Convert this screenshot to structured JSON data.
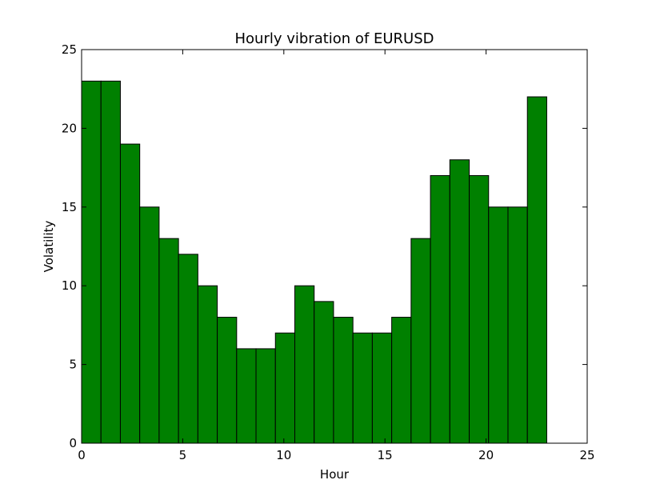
{
  "chart_data": {
    "type": "bar",
    "title": "Hourly vibration of EURUSD",
    "xlabel": "Hour",
    "ylabel": "Volatility",
    "xlim": [
      0,
      25
    ],
    "ylim": [
      0,
      25
    ],
    "x_ticks": [
      0,
      5,
      10,
      15,
      20,
      25
    ],
    "y_ticks": [
      0,
      5,
      10,
      15,
      20,
      25
    ],
    "bin_edges": [
      0,
      0.958,
      1.917,
      2.875,
      3.833,
      4.792,
      5.75,
      6.708,
      7.667,
      8.625,
      9.583,
      10.542,
      11.5,
      12.458,
      13.417,
      14.375,
      15.333,
      16.292,
      17.25,
      18.208,
      19.167,
      20.125,
      21.083,
      22.042,
      23
    ],
    "values": [
      23,
      23,
      19,
      15,
      13,
      12,
      10,
      8,
      6,
      6,
      7,
      10,
      9,
      8,
      7,
      7,
      8,
      13,
      17,
      18,
      17,
      15,
      15,
      22
    ],
    "bar_color": "#008000",
    "edge_color": "#000000",
    "grid": false,
    "legend": "none"
  }
}
